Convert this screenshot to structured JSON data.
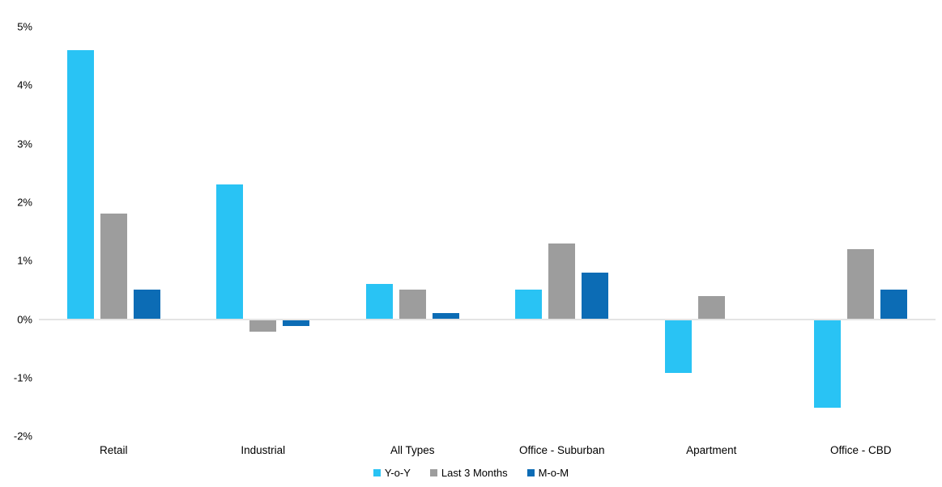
{
  "chart_data": {
    "type": "bar",
    "title": "",
    "xlabel": "",
    "ylabel": "",
    "categories": [
      "Retail",
      "Industrial",
      "All Types",
      "Office - Suburban",
      "Apartment",
      "Office - CBD"
    ],
    "series": [
      {
        "name": "Y-o-Y",
        "color": "#29c3f4",
        "values": [
          4.6,
          2.3,
          0.6,
          0.5,
          -0.9,
          -1.5
        ]
      },
      {
        "name": "Last 3 Months",
        "color": "#9d9d9d",
        "values": [
          1.8,
          -0.2,
          0.5,
          1.3,
          0.4,
          1.2
        ]
      },
      {
        "name": "M-o-M",
        "color": "#0c6cb5",
        "values": [
          0.5,
          -0.1,
          0.1,
          0.8,
          0.0,
          0.5
        ]
      }
    ],
    "ylim": [
      -2,
      5
    ],
    "ytick_labels": [
      "5%",
      "4%",
      "3%",
      "2%",
      "1%",
      "0%",
      "-1%",
      "-2%"
    ],
    "ytick_values": [
      5,
      4,
      3,
      2,
      1,
      0,
      -1,
      -2
    ],
    "grid": false,
    "legend_position": "bottom-center",
    "axis_line_color": "#e4e4e4",
    "text_color": "#000000"
  }
}
